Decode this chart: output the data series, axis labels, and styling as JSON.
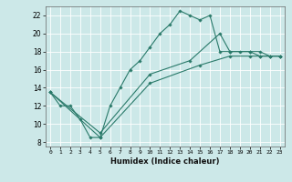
{
  "title": "",
  "xlabel": "Humidex (Indice chaleur)",
  "ylabel": "",
  "bg_color": "#cce8e8",
  "line_color": "#2a7a6a",
  "xlim": [
    -0.5,
    23.5
  ],
  "ylim": [
    7.5,
    23.0
  ],
  "xticks": [
    0,
    1,
    2,
    3,
    4,
    5,
    6,
    7,
    8,
    9,
    10,
    11,
    12,
    13,
    14,
    15,
    16,
    17,
    18,
    19,
    20,
    21,
    22,
    23
  ],
  "yticks": [
    8,
    10,
    12,
    14,
    16,
    18,
    20,
    22
  ],
  "series1_x": [
    0,
    1,
    2,
    3,
    4,
    5,
    6,
    7,
    8,
    9,
    10,
    11,
    12,
    13,
    14,
    15,
    16,
    17,
    18,
    19,
    20,
    21,
    22,
    23
  ],
  "series1_y": [
    13.5,
    12.0,
    12.0,
    10.5,
    8.5,
    8.5,
    12.0,
    14.0,
    16.0,
    17.0,
    18.5,
    20.0,
    21.0,
    22.5,
    22.0,
    21.5,
    22.0,
    18.0,
    18.0,
    18.0,
    18.0,
    17.5,
    17.5,
    17.5
  ],
  "series2_x": [
    0,
    5,
    10,
    15,
    18,
    20,
    21,
    22,
    23
  ],
  "series2_y": [
    13.5,
    8.5,
    14.5,
    16.5,
    17.5,
    17.5,
    17.5,
    17.5,
    17.5
  ],
  "series3_x": [
    0,
    5,
    10,
    14,
    17,
    18,
    20,
    21,
    22,
    23
  ],
  "series3_y": [
    13.5,
    9.0,
    15.5,
    17.0,
    20.0,
    18.0,
    18.0,
    18.0,
    17.5,
    17.5
  ]
}
